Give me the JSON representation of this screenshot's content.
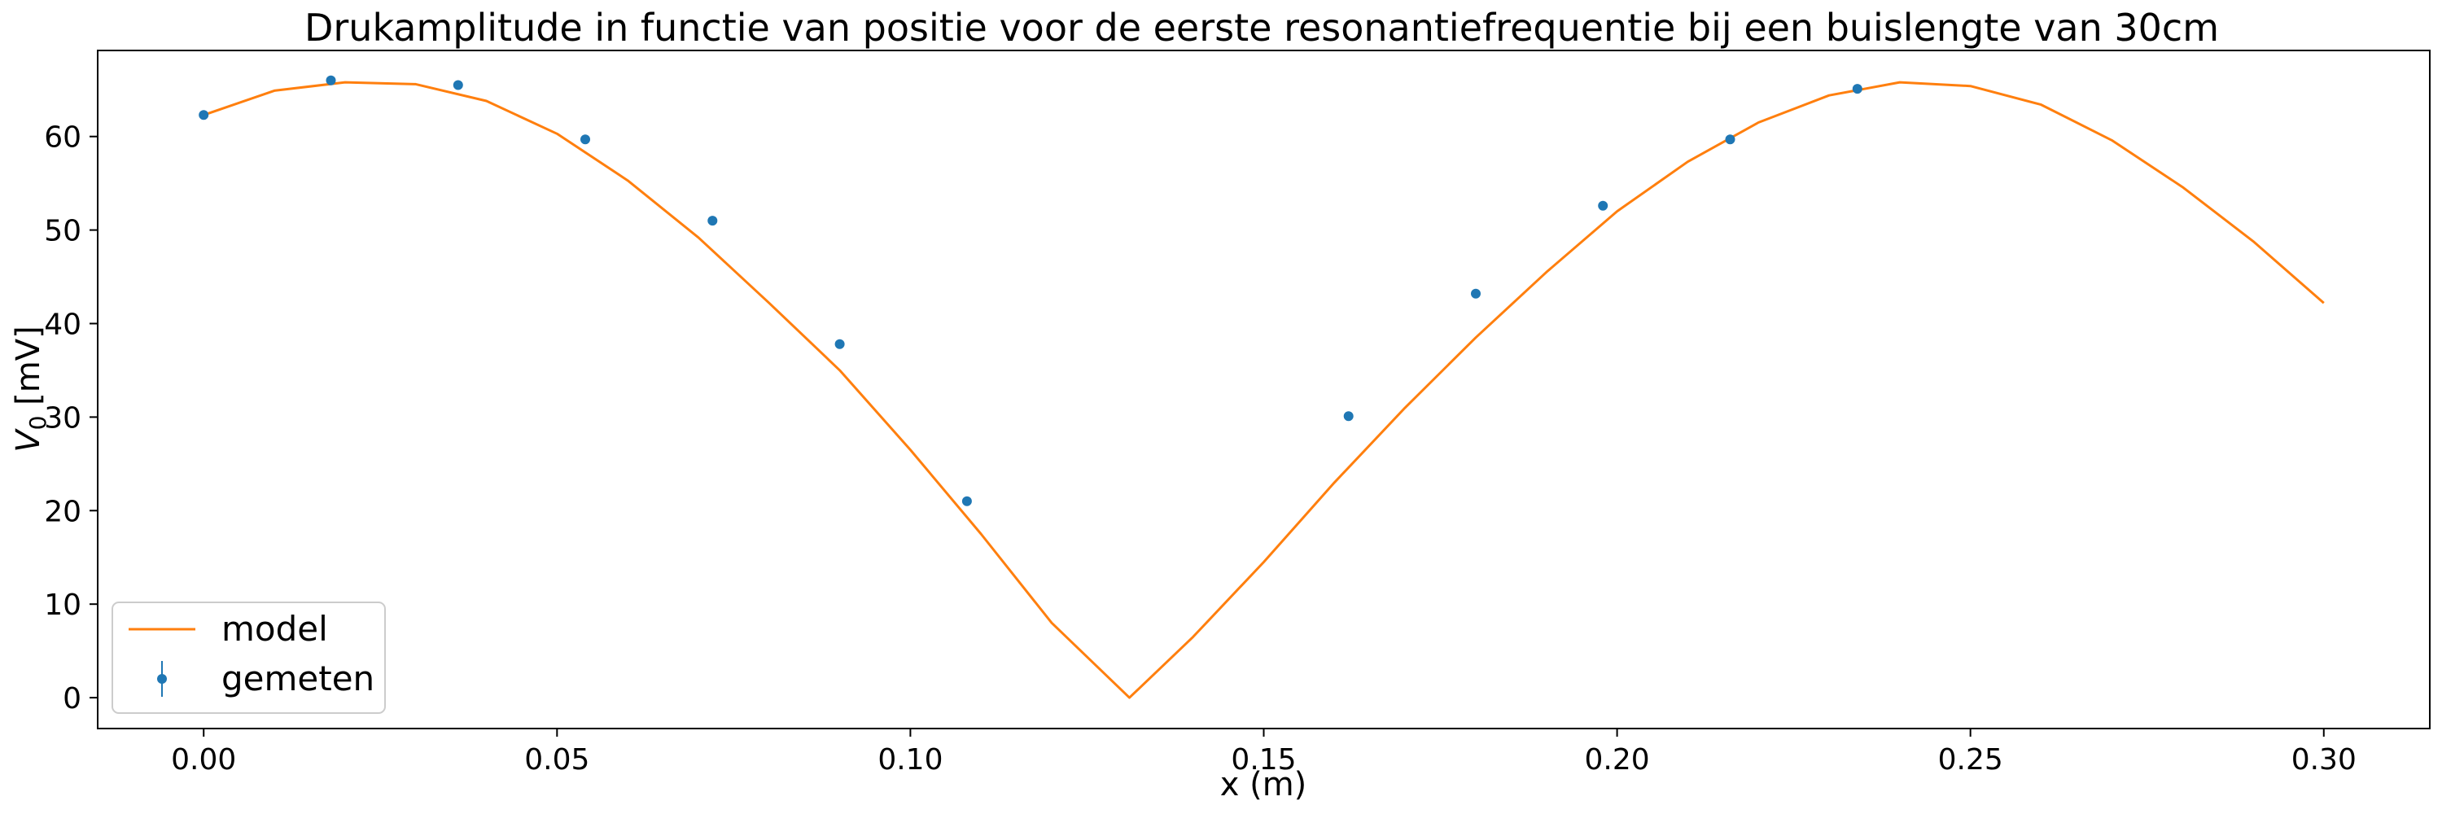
{
  "chart_data": {
    "type": "scatter",
    "title": "Drukamplitude in functie van positie voor de eerste resonantiefrequentie bij een buislengte van 30cm",
    "xlabel": "x (m)",
    "ylabel_main": "V",
    "ylabel_sub": "0",
    "ylabel_unit": " [mV]",
    "xlim": [
      -0.015,
      0.315
    ],
    "ylim": [
      -3.3,
      69.2
    ],
    "xticks": [
      0.0,
      0.05,
      0.1,
      0.15,
      0.2,
      0.25,
      0.3
    ],
    "xtick_labels": [
      "0.00",
      "0.05",
      "0.10",
      "0.15",
      "0.20",
      "0.25",
      "0.30"
    ],
    "yticks": [
      0,
      10,
      20,
      30,
      40,
      50,
      60
    ],
    "ytick_labels": [
      "0",
      "10",
      "20",
      "30",
      "40",
      "50",
      "60"
    ],
    "grid": false,
    "legend_position": "lower-left",
    "series": [
      {
        "name": "model",
        "kind": "line",
        "color": "#ff7f0e",
        "x": [
          0.0,
          0.01,
          0.02,
          0.03,
          0.04,
          0.05,
          0.06,
          0.07,
          0.08,
          0.09,
          0.1,
          0.11,
          0.12,
          0.131,
          0.14,
          0.15,
          0.16,
          0.17,
          0.18,
          0.19,
          0.2,
          0.21,
          0.22,
          0.23,
          0.24,
          0.25,
          0.26,
          0.27,
          0.28,
          0.29,
          0.3
        ],
        "y": [
          62.3,
          64.9,
          65.8,
          65.6,
          63.8,
          60.3,
          55.3,
          49.2,
          42.2,
          35.0,
          26.5,
          17.5,
          8.0,
          0.0,
          6.5,
          14.5,
          23.0,
          31.0,
          38.5,
          45.5,
          52.0,
          57.3,
          61.5,
          64.4,
          65.8,
          65.4,
          63.4,
          59.6,
          54.6,
          48.8,
          42.2
        ]
      },
      {
        "name": "gemeten",
        "kind": "errorbar",
        "color": "#1f77b4",
        "x": [
          0.0,
          0.018,
          0.036,
          0.054,
          0.072,
          0.09,
          0.108,
          0.162,
          0.18,
          0.198,
          0.216,
          0.234
        ],
        "y": [
          62.3,
          66.0,
          65.5,
          59.7,
          51.0,
          37.8,
          21.0,
          30.1,
          43.2,
          52.6,
          59.7,
          65.1
        ]
      }
    ]
  }
}
